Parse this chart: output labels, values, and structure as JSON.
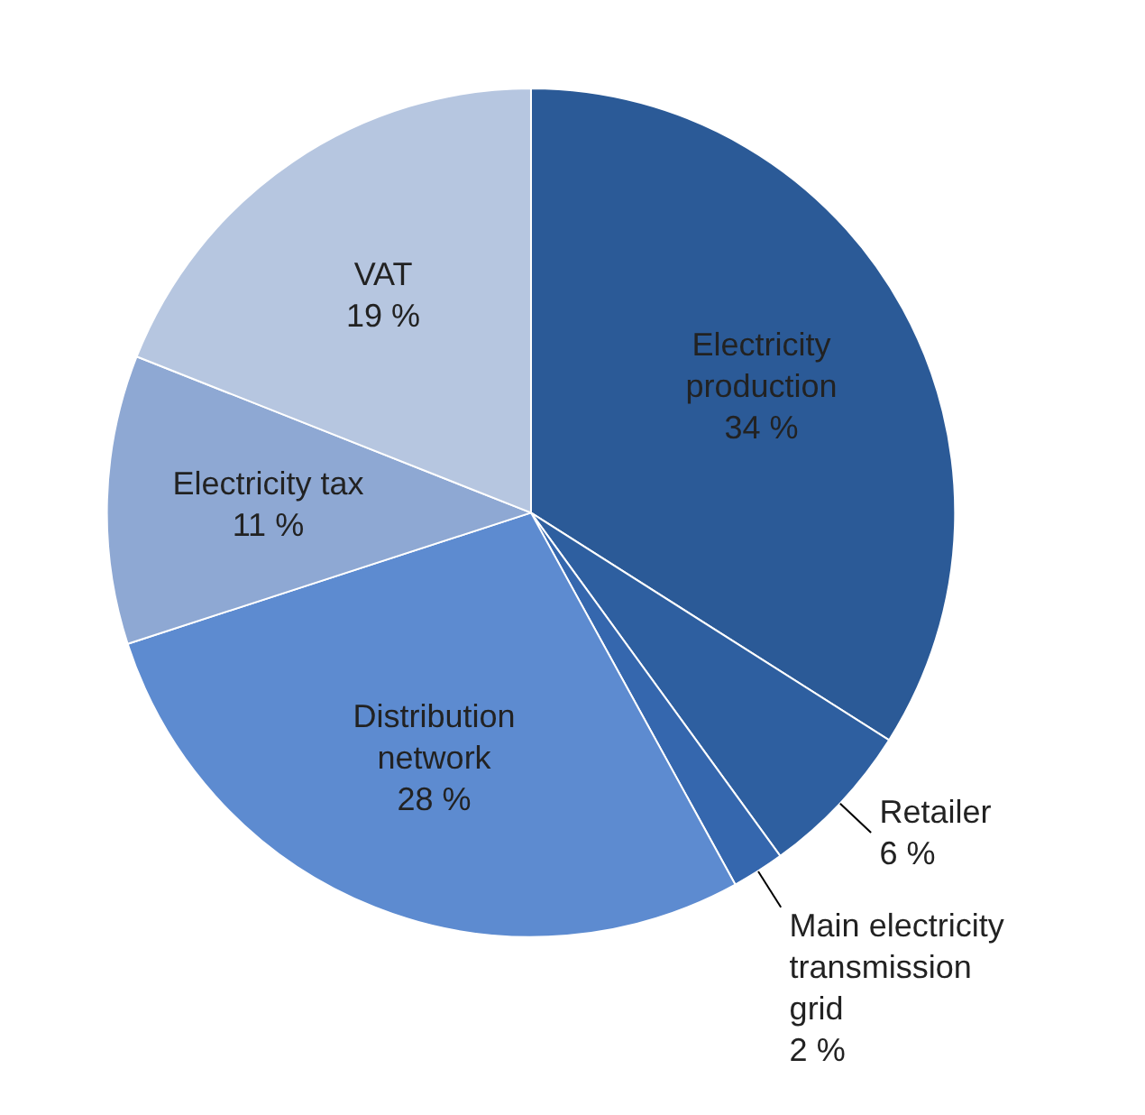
{
  "chart_data": {
    "type": "pie",
    "categories": [
      "Electricity production",
      "Retailer",
      "Main electricity transmission grid",
      "Distribution network",
      "Electricity tax",
      "VAT"
    ],
    "values": [
      34,
      6,
      2,
      28,
      11,
      19
    ],
    "colors": [
      "#2b5a97",
      "#2e5fa0",
      "#3567ae",
      "#5d8bd0",
      "#8ea8d3",
      "#b6c6e0"
    ],
    "value_labels": [
      "34 %",
      "6 %",
      "2 %",
      "28 %",
      "11 %",
      "19 %"
    ],
    "legend": false
  }
}
